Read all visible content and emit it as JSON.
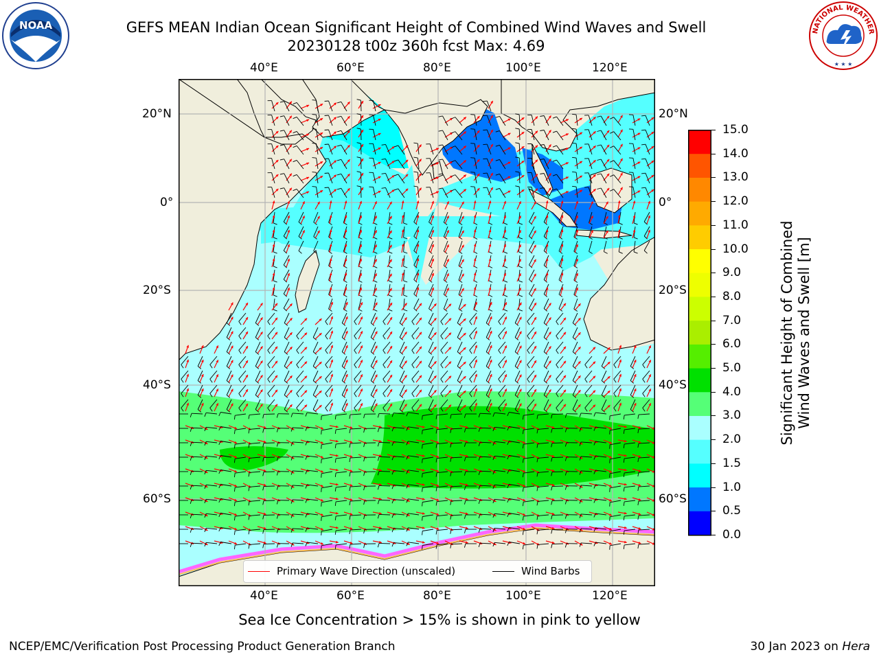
{
  "title": {
    "line1": "GEFS MEAN Indian Ocean Significant Height of Combined Wind Waves and Swell",
    "line2": "20230128 t00z 360h fcst   Max: 4.69"
  },
  "map": {
    "lon_ticks": [
      "40°E",
      "60°E",
      "80°E",
      "100°E",
      "120°E"
    ],
    "lat_ticks": [
      "20°N",
      "0°",
      "20°S",
      "40°S",
      "60°S"
    ],
    "land_color": "#f0eedc",
    "grid_color": "#b4b4b4"
  },
  "colorbar": {
    "label_line1": "Significant Height of Combined",
    "label_line2": "Wind Waves and Swell [m]",
    "ticks": [
      "0.0",
      "0.5",
      "1.0",
      "1.5",
      "2.0",
      "3.0",
      "4.0",
      "5.0",
      "6.0",
      "7.0",
      "8.0",
      "9.0",
      "10.0",
      "11.0",
      "12.0",
      "13.0",
      "14.0",
      "15.0"
    ],
    "colors": [
      "#0000ff",
      "#0077ff",
      "#00ffff",
      "#55ffff",
      "#aaffff",
      "#55ff77",
      "#00e000",
      "#55ee00",
      "#aaee00",
      "#ccff00",
      "#eeff00",
      "#ffff00",
      "#ffcc00",
      "#ffaa00",
      "#ff8800",
      "#ff5500",
      "#ff0000"
    ]
  },
  "legend": {
    "wave_direction": "Primary Wave Direction (unscaled)",
    "wind_barbs": "Wind Barbs",
    "wave_color": "#ff0000",
    "barb_color": "#000000"
  },
  "logos": {
    "left": "noaa-logo",
    "right": "nws-logo",
    "right_text": "NATIONAL WEATHER SERVICE"
  },
  "subcaption": "Sea Ice Concentration > 15% is shown in pink to yellow",
  "footer": {
    "left": "NCEP/EMC/Verification Post Processing Product Generation Branch",
    "right_date": "30 Jan 2023 on ",
    "right_host": "Hera"
  }
}
